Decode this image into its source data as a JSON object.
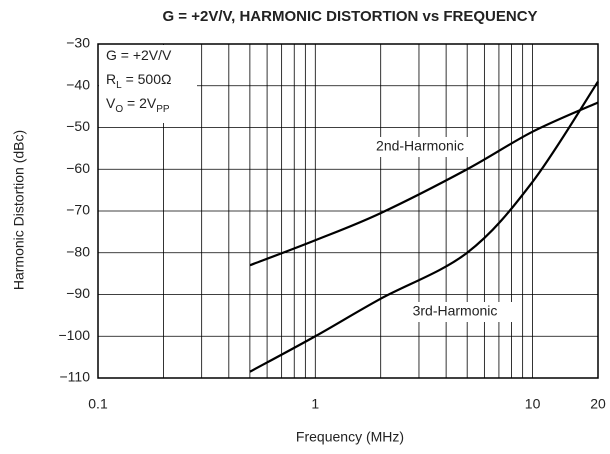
{
  "chart_data": {
    "type": "line",
    "title": "G = +2V/V, HARMONIC DISTORTION vs FREQUENCY",
    "xlabel": "Frequency (MHz)",
    "ylabel": "Harmonic Distortion (dBc)",
    "xscale": "log",
    "xlim": [
      0.1,
      20
    ],
    "ylim": [
      -110,
      -30
    ],
    "xticks": [
      0.1,
      1,
      10,
      20
    ],
    "xgrid": [
      0.2,
      0.3,
      0.4,
      0.5,
      0.6,
      0.7,
      0.8,
      0.9,
      2,
      3,
      4,
      5,
      6,
      7,
      8,
      9
    ],
    "yticks": [
      {
        "value": -30,
        "label": "−30"
      },
      {
        "value": -40,
        "label": "−40"
      },
      {
        "value": -50,
        "label": "−50"
      },
      {
        "value": -60,
        "label": "−60"
      },
      {
        "value": -70,
        "label": "−70"
      },
      {
        "value": -80,
        "label": "−80"
      },
      {
        "value": -90,
        "label": "−90"
      },
      {
        "value": -100,
        "label": "−100"
      },
      {
        "value": -110,
        "label": "−110"
      }
    ],
    "grid": true,
    "annotations": [
      {
        "parts": [
          {
            "text": "G = +2V/V"
          }
        ]
      },
      {
        "parts": [
          {
            "text": "R"
          },
          {
            "text": "L",
            "sub": true
          },
          {
            "text": " = 500Ω"
          }
        ]
      },
      {
        "parts": [
          {
            "text": "V"
          },
          {
            "text": "O",
            "sub": true
          },
          {
            "text": " = 2V"
          },
          {
            "text": "PP",
            "sub": true
          }
        ]
      }
    ],
    "x": [
      0.5,
      1,
      2,
      5,
      10,
      20
    ],
    "series": [
      {
        "name": "2nd-Harmonic",
        "color": "#000000",
        "values": [
          -83,
          -77,
          -70.5,
          -60,
          -51,
          -44
        ]
      },
      {
        "name": "3rd-Harmonic",
        "color": "#000000",
        "values": [
          -108.5,
          -100,
          -91,
          -80,
          -63,
          -39
        ]
      }
    ]
  }
}
